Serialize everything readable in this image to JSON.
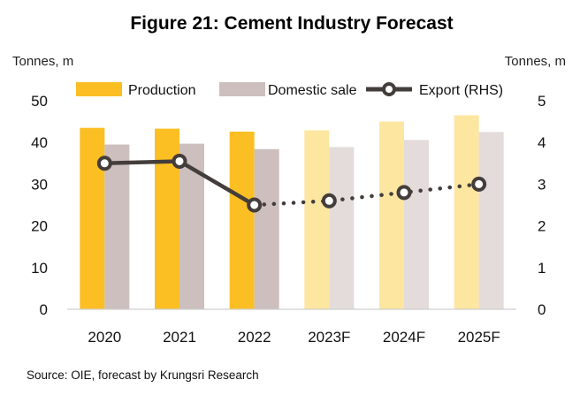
{
  "chart_data": {
    "type": "bar",
    "title": "Figure 21: Cement Industry Forecast",
    "left_unit": "Tonnes, m",
    "right_unit": "Tonnes, m",
    "categories": [
      "2020",
      "2021",
      "2022",
      "2023F",
      "2024F",
      "2025F"
    ],
    "forecast_from_index": 3,
    "ylim": [
      0,
      50
    ],
    "y_ticks": [
      0,
      10,
      20,
      30,
      40,
      50
    ],
    "y2lim": [
      0,
      5
    ],
    "y2_ticks": [
      0,
      1,
      2,
      3,
      4,
      5
    ],
    "grid": false,
    "legend_position": "top",
    "series": [
      {
        "name": "Production",
        "kind": "bar",
        "axis": "left",
        "values": [
          43.5,
          43.3,
          42.6,
          42.9,
          45.0,
          46.5
        ],
        "color": "#FBBF24",
        "forecast_color": "#FDE6A0"
      },
      {
        "name": "Domestic sale",
        "kind": "bar",
        "axis": "left",
        "values": [
          39.5,
          39.7,
          38.4,
          38.9,
          40.6,
          42.5
        ],
        "color": "#CCBFBE",
        "forecast_color": "#E3DCDB"
      },
      {
        "name": "Export (RHS)",
        "kind": "line",
        "axis": "right",
        "values": [
          3.5,
          3.55,
          2.5,
          2.6,
          2.8,
          3.0
        ],
        "color": "#433D3B"
      }
    ],
    "source": "Source: OIE,  forecast by Krungsri Research"
  }
}
